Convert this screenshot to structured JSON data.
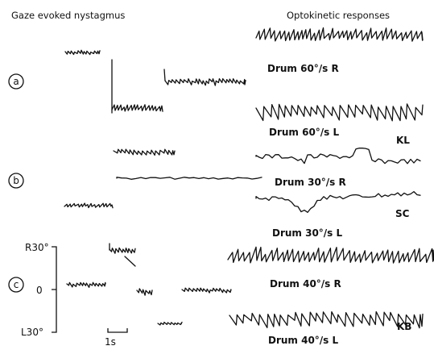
{
  "headers": {
    "gaze": "Gaze evoked nystagmus",
    "okn": "Optokinetic responses"
  },
  "panels": [
    {
      "id": "a",
      "subject": "KL",
      "drums": [
        "Drum 60°/s R",
        "Drum 60°/s L"
      ]
    },
    {
      "id": "b",
      "subject": "SC",
      "drums": [
        "Drum 30°/s R",
        "Drum 30°/s L"
      ]
    },
    {
      "id": "c",
      "subject": "KB",
      "drums": [
        "Drum 40°/s R",
        "Drum 40°/s L"
      ]
    }
  ],
  "axis": {
    "top": "R30°",
    "mid": "0",
    "bottom": "L30°"
  },
  "scale": "1s"
}
